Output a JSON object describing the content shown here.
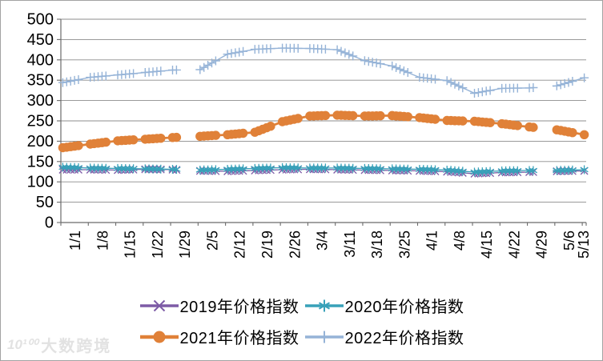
{
  "watermark": {
    "logo": "10¹⁰⁰",
    "text": "大数跨境"
  },
  "chart_data": {
    "type": "line",
    "title": "",
    "xlabel": "",
    "ylabel": "",
    "ylim": [
      0,
      500
    ],
    "y_tick_step": 50,
    "grid": "horizontal",
    "legend_position": "bottom",
    "x_tick_labels": [
      "1/1",
      "1/8",
      "1/15",
      "1/22",
      "1/29",
      "2/5",
      "2/12",
      "2/19",
      "2/26",
      "3/4",
      "3/11",
      "3/18",
      "3/25",
      "4/1",
      "4/8",
      "4/15",
      "4/22",
      "4/29",
      "5/6",
      "5/13"
    ],
    "points_per_tick": 7,
    "gaps": [
      {
        "start_day": 30,
        "end_day": 34
      },
      {
        "start_day": 121,
        "end_day": 124
      }
    ],
    "marker_skip_weekdays": [
      5,
      6
    ],
    "series": [
      {
        "name": "2019年价格指数",
        "color": "#7D5BA6",
        "marker": "x",
        "weekly_values": [
          130,
          130,
          129,
          131,
          130,
          127,
          126,
          128,
          130,
          131,
          130,
          129,
          128,
          127,
          125,
          120,
          123,
          124,
          126,
          127
        ]
      },
      {
        "name": "2020年价格指数",
        "color": "#38A1B9",
        "marker": "asterisk",
        "weekly_values": [
          136,
          134,
          133,
          132,
          131,
          129,
          131,
          133,
          135,
          134,
          134,
          133,
          132,
          131,
          129,
          124,
          127,
          128,
          128,
          130
        ]
      },
      {
        "name": "2021年价格指数",
        "color": "#E08138",
        "marker": "circle",
        "weekly_values": [
          184,
          193,
          201,
          205,
          209,
          212,
          216,
          222,
          248,
          262,
          264,
          262,
          263,
          258,
          251,
          249,
          243,
          235,
          228,
          216
        ]
      },
      {
        "name": "2022年价格指数",
        "color": "#95B3D7",
        "marker": "plus",
        "weekly_values": [
          344,
          357,
          363,
          369,
          375,
          376,
          414,
          426,
          429,
          428,
          425,
          398,
          385,
          357,
          349,
          318,
          330,
          331,
          336,
          356
        ]
      }
    ]
  }
}
